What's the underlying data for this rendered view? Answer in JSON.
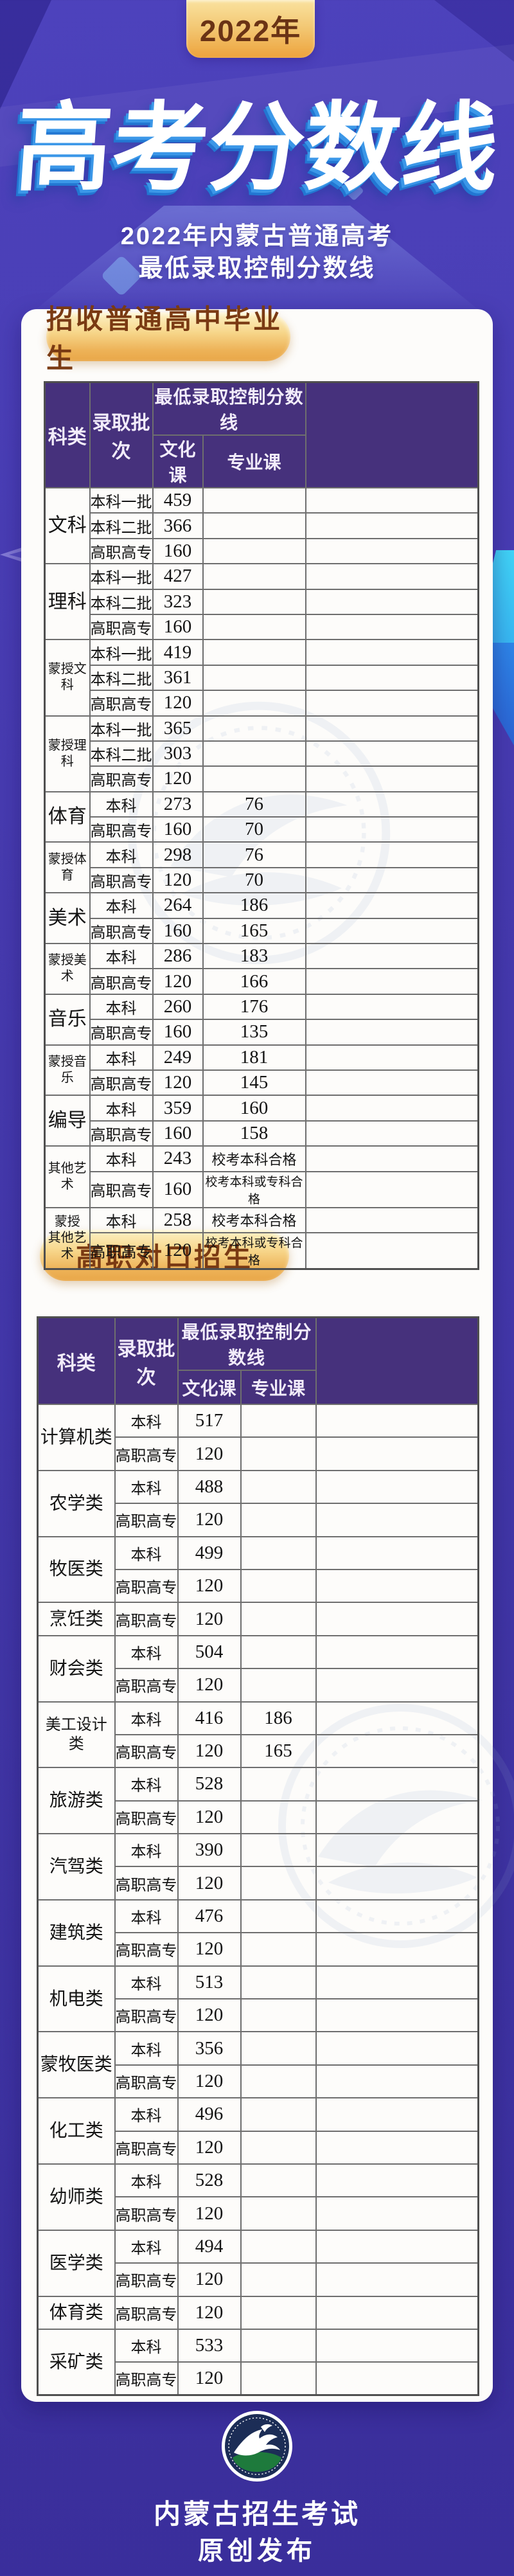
{
  "page": {
    "year_badge": "2022年",
    "main_title": "高考分数线",
    "subtitle_line1": "2022年内蒙古普通高考",
    "subtitle_line2": "最低录取控制分数线",
    "footer": {
      "org": "内蒙古招生考试",
      "note": "原创发布"
    }
  },
  "colors": {
    "background_purple": "#4438ab",
    "table_header_purple": "#46317c",
    "gold_accent": "#edb257",
    "title_shadow_blue": "#2277d2",
    "cyan_accent": "#41d4f7"
  },
  "columns": {
    "category": "科类",
    "batch": "录取批次",
    "min_line": "最低录取控制分数线",
    "culture": "文化课",
    "major": "专业课"
  },
  "section1": {
    "heading": "招收普通高中毕业生",
    "groups": [
      {
        "category": "文科",
        "rows": [
          [
            "本科一批",
            "459",
            ""
          ],
          [
            "本科二批",
            "366",
            ""
          ],
          [
            "高职高专",
            "160",
            ""
          ]
        ]
      },
      {
        "category": "理科",
        "rows": [
          [
            "本科一批",
            "427",
            ""
          ],
          [
            "本科二批",
            "323",
            ""
          ],
          [
            "高职高专",
            "160",
            ""
          ]
        ]
      },
      {
        "category": "蒙授文科",
        "rows": [
          [
            "本科一批",
            "419",
            ""
          ],
          [
            "本科二批",
            "361",
            ""
          ],
          [
            "高职高专",
            "120",
            ""
          ]
        ]
      },
      {
        "category": "蒙授理科",
        "rows": [
          [
            "本科一批",
            "365",
            ""
          ],
          [
            "本科二批",
            "303",
            ""
          ],
          [
            "高职高专",
            "120",
            ""
          ]
        ]
      },
      {
        "category": "体育",
        "rows": [
          [
            "本科",
            "273",
            "76"
          ],
          [
            "高职高专",
            "160",
            "70"
          ]
        ]
      },
      {
        "category": "蒙授体育",
        "rows": [
          [
            "本科",
            "298",
            "76"
          ],
          [
            "高职高专",
            "120",
            "70"
          ]
        ]
      },
      {
        "category": "美术",
        "rows": [
          [
            "本科",
            "264",
            "186"
          ],
          [
            "高职高专",
            "160",
            "165"
          ]
        ]
      },
      {
        "category": "蒙授美术",
        "rows": [
          [
            "本科",
            "286",
            "183"
          ],
          [
            "高职高专",
            "120",
            "166"
          ]
        ]
      },
      {
        "category": "音乐",
        "rows": [
          [
            "本科",
            "260",
            "176"
          ],
          [
            "高职高专",
            "160",
            "135"
          ]
        ]
      },
      {
        "category": "蒙授音乐",
        "rows": [
          [
            "本科",
            "249",
            "181"
          ],
          [
            "高职高专",
            "120",
            "145"
          ]
        ]
      },
      {
        "category": "编导",
        "rows": [
          [
            "本科",
            "359",
            "160"
          ],
          [
            "高职高专",
            "160",
            "158"
          ]
        ]
      },
      {
        "category": "其他艺术",
        "rows": [
          [
            "本科",
            "243",
            "校考本科合格"
          ],
          [
            "高职高专",
            "160",
            "校考本科或专科合格"
          ]
        ]
      },
      {
        "category": "蒙授其他艺术",
        "rows": [
          [
            "本科",
            "258",
            "校考本科合格"
          ],
          [
            "高职高专",
            "120",
            "校考本科或专科合格"
          ]
        ]
      }
    ]
  },
  "section2": {
    "heading": "高职对口招生",
    "groups": [
      {
        "category": "计算机类",
        "rows": [
          [
            "本科",
            "517",
            ""
          ],
          [
            "高职高专",
            "120",
            ""
          ]
        ]
      },
      {
        "category": "农学类",
        "rows": [
          [
            "本科",
            "488",
            ""
          ],
          [
            "高职高专",
            "120",
            ""
          ]
        ]
      },
      {
        "category": "牧医类",
        "rows": [
          [
            "本科",
            "499",
            ""
          ],
          [
            "高职高专",
            "120",
            ""
          ]
        ]
      },
      {
        "category": "烹饪类",
        "rows": [
          [
            "高职高专",
            "120",
            ""
          ]
        ]
      },
      {
        "category": "财会类",
        "rows": [
          [
            "本科",
            "504",
            ""
          ],
          [
            "高职高专",
            "120",
            ""
          ]
        ]
      },
      {
        "category": "美工设计类",
        "rows": [
          [
            "本科",
            "416",
            "186"
          ],
          [
            "高职高专",
            "120",
            "165"
          ]
        ]
      },
      {
        "category": "旅游类",
        "rows": [
          [
            "本科",
            "528",
            ""
          ],
          [
            "高职高专",
            "120",
            ""
          ]
        ]
      },
      {
        "category": "汽驾类",
        "rows": [
          [
            "本科",
            "390",
            ""
          ],
          [
            "高职高专",
            "120",
            ""
          ]
        ]
      },
      {
        "category": "建筑类",
        "rows": [
          [
            "本科",
            "476",
            ""
          ],
          [
            "高职高专",
            "120",
            ""
          ]
        ]
      },
      {
        "category": "机电类",
        "rows": [
          [
            "本科",
            "513",
            ""
          ],
          [
            "高职高专",
            "120",
            ""
          ]
        ]
      },
      {
        "category": "蒙牧医类",
        "rows": [
          [
            "本科",
            "356",
            ""
          ],
          [
            "高职高专",
            "120",
            ""
          ]
        ]
      },
      {
        "category": "化工类",
        "rows": [
          [
            "本科",
            "496",
            ""
          ],
          [
            "高职高专",
            "120",
            ""
          ]
        ]
      },
      {
        "category": "幼师类",
        "rows": [
          [
            "本科",
            "528",
            ""
          ],
          [
            "高职高专",
            "120",
            ""
          ]
        ]
      },
      {
        "category": "医学类",
        "rows": [
          [
            "本科",
            "494",
            ""
          ],
          [
            "高职高专",
            "120",
            ""
          ]
        ]
      },
      {
        "category": "体育类",
        "rows": [
          [
            "高职高专",
            "120",
            ""
          ]
        ]
      },
      {
        "category": "采矿类",
        "rows": [
          [
            "本科",
            "533",
            ""
          ],
          [
            "高职高专",
            "120",
            ""
          ]
        ]
      }
    ]
  }
}
